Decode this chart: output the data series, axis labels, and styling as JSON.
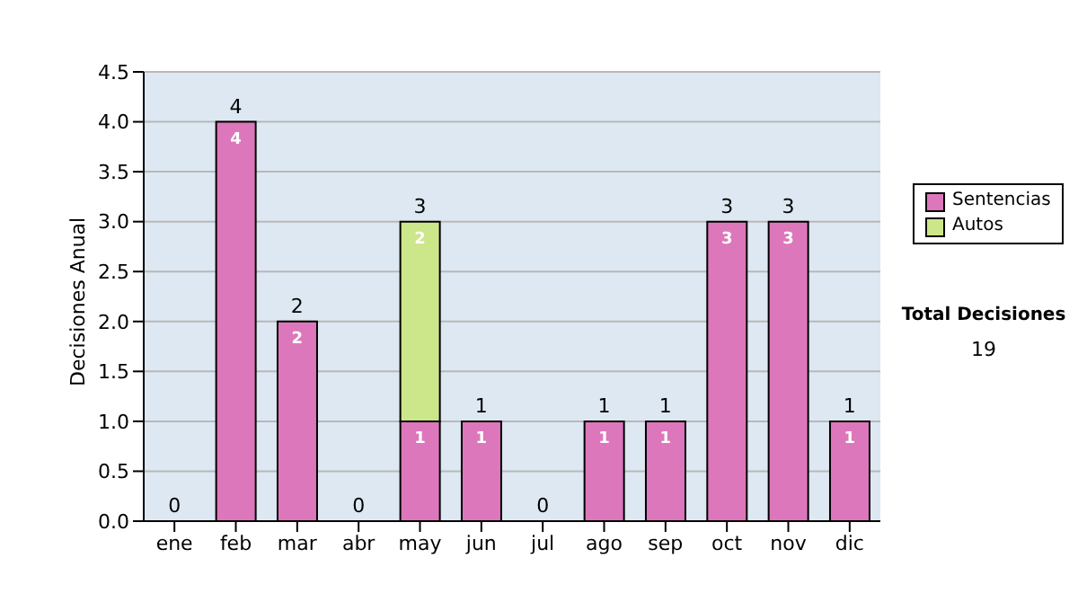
{
  "chart_data": {
    "type": "bar",
    "ylabel": "Decisiones Anual",
    "categories": [
      "ene",
      "feb",
      "mar",
      "abr",
      "may",
      "jun",
      "jul",
      "ago",
      "sep",
      "oct",
      "nov",
      "dic"
    ],
    "series": [
      {
        "name": "Sentencias",
        "color": "#dd77bb",
        "values": [
          0,
          4,
          2,
          0,
          1,
          1,
          0,
          1,
          1,
          3,
          3,
          1
        ],
        "value_labels": [
          null,
          "4",
          "2",
          null,
          "1",
          "1",
          null,
          "1",
          "1",
          "3",
          "3",
          "1"
        ]
      },
      {
        "name": "Autos",
        "color": "#cce68a",
        "values": [
          0,
          0,
          0,
          0,
          2,
          0,
          0,
          0,
          0,
          0,
          0,
          0
        ],
        "value_labels": [
          null,
          null,
          null,
          null,
          "2",
          null,
          null,
          null,
          null,
          null,
          null,
          null
        ]
      }
    ],
    "stacked": true,
    "totals": [
      "0",
      "4",
      "2",
      "0",
      "3",
      "1",
      "0",
      "1",
      "1",
      "3",
      "3",
      "1"
    ],
    "ylim": [
      0,
      4.5
    ],
    "yticks": [
      {
        "value": 0,
        "label": "0.0"
      },
      0.5,
      {
        "value": 1,
        "label": "1.0"
      },
      1.5,
      {
        "value": 2,
        "label": "2.0"
      },
      2.5,
      {
        "value": 3,
        "label": "3.0"
      },
      3.5,
      {
        "value": 4,
        "label": "4.0"
      },
      4.5
    ],
    "grid": "y",
    "legend": "right",
    "annotations": [
      "Total Decisiones",
      "19"
    ]
  }
}
